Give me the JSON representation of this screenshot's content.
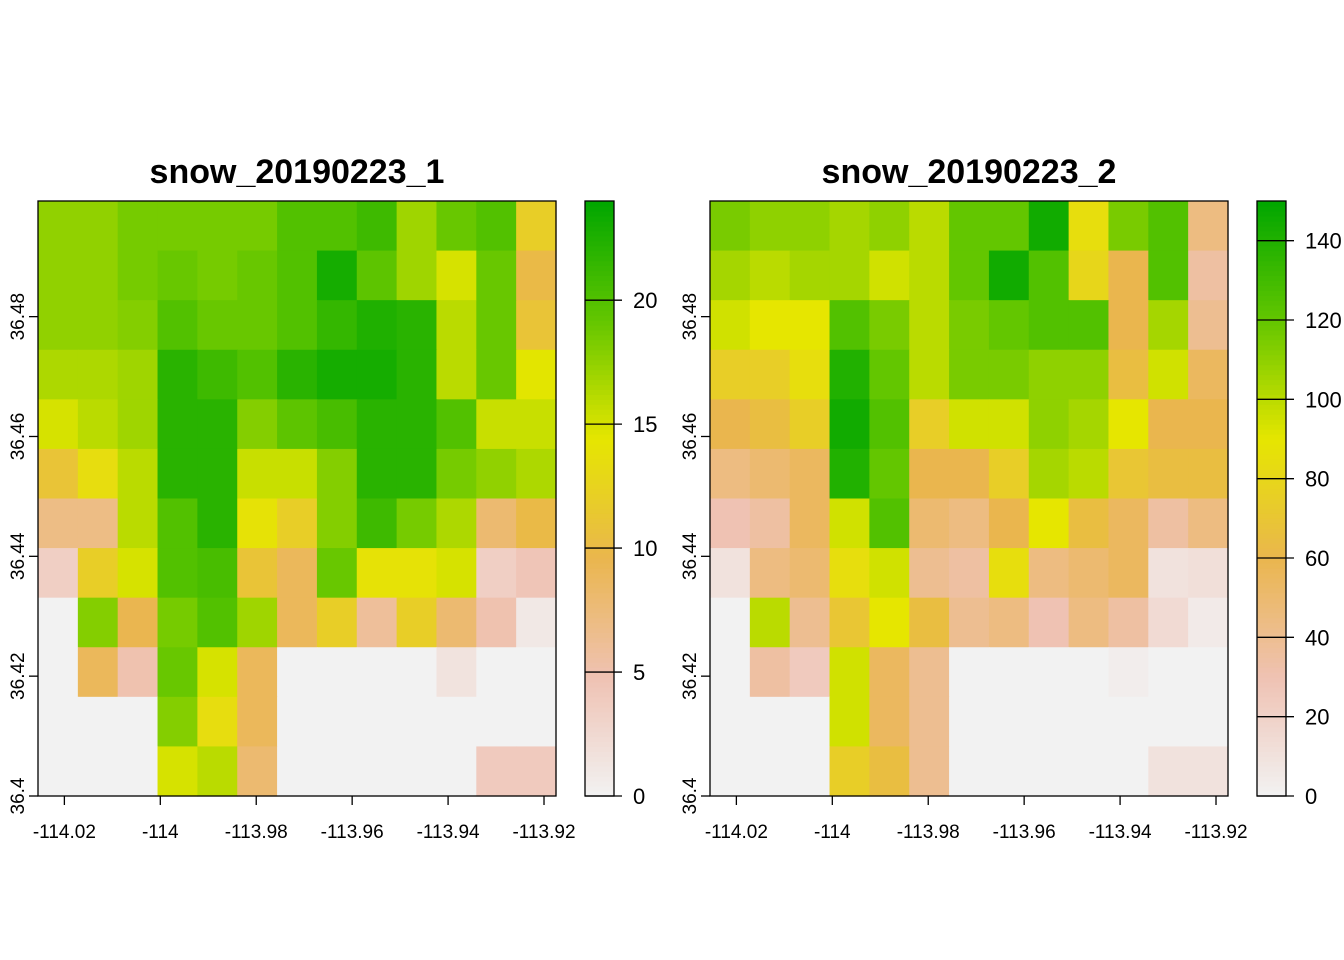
{
  "chart_data": [
    {
      "type": "heatmap",
      "title": "snow_20190223_1",
      "xlabel": "",
      "ylabel": "",
      "xlim": [
        -114.0255,
        -113.9175
      ],
      "ylim": [
        36.4,
        36.4993
      ],
      "x_ticks": [
        -114.02,
        -114,
        -113.98,
        -113.96,
        -113.94,
        -113.92
      ],
      "x_tick_labels": [
        "-114.02",
        "-114",
        "-113.98",
        "-113.96",
        "-113.94",
        "-113.92"
      ],
      "y_ticks": [
        36.4,
        36.42,
        36.44,
        36.46,
        36.48
      ],
      "y_tick_labels": [
        "36.4",
        "36.42",
        "36.44",
        "36.46",
        "36.48"
      ],
      "legend": "right",
      "colorbar": {
        "min": 0,
        "max": 24,
        "ticks": [
          0,
          5,
          10,
          15,
          20
        ],
        "tick_labels": [
          "0",
          "5",
          "10",
          "15",
          "20"
        ]
      },
      "grid": false,
      "rows": 12,
      "cols": 13,
      "values": [
        [
          17.5,
          17.5,
          18.5,
          18.5,
          18.5,
          18.5,
          20,
          20,
          21,
          17,
          19,
          20,
          12
        ],
        [
          17.5,
          17.5,
          18.5,
          19,
          18.5,
          19,
          20,
          23,
          19.5,
          17,
          15,
          19,
          10
        ],
        [
          17.5,
          17.5,
          18,
          20,
          19,
          19,
          20,
          21.5,
          22.5,
          22,
          16,
          19,
          11
        ],
        [
          16.5,
          16.5,
          17,
          22,
          21,
          20,
          22,
          23,
          23,
          22,
          16,
          19,
          14.5
        ],
        [
          15,
          16,
          17,
          22,
          22,
          18,
          19.5,
          20.5,
          22,
          22,
          20,
          15.5,
          15.5
        ],
        [
          11,
          13.5,
          16,
          22,
          22,
          15.5,
          15.5,
          18,
          22,
          22,
          18.5,
          17.5,
          16.5
        ],
        [
          7,
          7,
          16,
          20,
          22,
          14,
          12,
          18,
          21,
          18.5,
          16.5,
          8,
          10
        ],
        [
          3.5,
          12,
          15,
          20,
          20.5,
          11,
          9,
          19,
          14,
          14,
          15,
          3.5,
          4.5
        ],
        [
          0,
          18,
          9.5,
          18.5,
          20,
          17,
          9,
          12,
          6,
          12,
          8,
          5,
          1
        ],
        [
          0,
          9,
          5,
          19,
          15,
          9,
          0,
          0,
          0,
          0,
          1.5,
          0,
          0
        ],
        [
          0,
          0,
          0,
          18,
          13.5,
          9,
          0,
          0,
          0,
          0,
          0,
          0,
          0
        ],
        [
          0,
          0,
          0,
          15,
          16,
          8,
          0,
          0,
          0,
          0,
          0,
          4,
          4
        ]
      ]
    },
    {
      "type": "heatmap",
      "title": "snow_20190223_2",
      "xlabel": "",
      "ylabel": "",
      "xlim": [
        -114.0255,
        -113.9175
      ],
      "ylim": [
        36.4,
        36.4993
      ],
      "x_ticks": [
        -114.02,
        -114,
        -113.98,
        -113.96,
        -113.94,
        -113.92
      ],
      "x_tick_labels": [
        "-114.02",
        "-114",
        "-113.98",
        "-113.96",
        "-113.94",
        "-113.92"
      ],
      "y_ticks": [
        36.4,
        36.42,
        36.44,
        36.46,
        36.48
      ],
      "y_tick_labels": [
        "36.4",
        "36.42",
        "36.44",
        "36.46",
        "36.48"
      ],
      "legend": "right",
      "colorbar": {
        "min": 0,
        "max": 150,
        "ticks": [
          0,
          20,
          40,
          60,
          80,
          100,
          120,
          140
        ],
        "tick_labels": [
          "0",
          "20",
          "40",
          "60",
          "80",
          "100",
          "120",
          "140"
        ]
      },
      "grid": false,
      "rows": 12,
      "cols": 13,
      "values": [
        [
          115,
          110,
          110,
          105,
          110,
          100,
          120,
          120,
          145,
          85,
          115,
          125,
          45
        ],
        [
          105,
          100,
          105,
          105,
          95,
          100,
          120,
          145,
          125,
          80,
          60,
          125,
          35
        ],
        [
          95,
          90,
          90,
          125,
          115,
          100,
          115,
          120,
          125,
          125,
          60,
          105,
          40
        ],
        [
          75,
          75,
          85,
          140,
          120,
          100,
          115,
          115,
          110,
          110,
          65,
          95,
          55
        ],
        [
          60,
          65,
          75,
          145,
          125,
          75,
          95,
          95,
          110,
          105,
          90,
          60,
          60
        ],
        [
          45,
          50,
          55,
          140,
          120,
          60,
          60,
          75,
          105,
          100,
          70,
          65,
          65
        ],
        [
          30,
          35,
          55,
          95,
          125,
          50,
          45,
          60,
          90,
          65,
          55,
          35,
          45
        ],
        [
          10,
          45,
          50,
          85,
          95,
          40,
          35,
          85,
          45,
          50,
          55,
          10,
          12
        ],
        [
          0,
          100,
          40,
          70,
          90,
          65,
          40,
          45,
          30,
          45,
          35,
          15,
          5
        ],
        [
          0,
          35,
          25,
          95,
          55,
          40,
          0,
          0,
          0,
          0,
          3,
          0,
          0
        ],
        [
          0,
          0,
          0,
          95,
          55,
          40,
          0,
          0,
          0,
          0,
          0,
          0,
          0
        ],
        [
          0,
          0,
          0,
          75,
          65,
          40,
          0,
          0,
          0,
          0,
          0,
          10,
          10
        ]
      ]
    }
  ],
  "colors": {
    "palette": [
      "#F2F2F2",
      "#EFC2B3",
      "#EAB64E",
      "#E6E600",
      "#63C600",
      "#00A600"
    ],
    "axis": "#000000",
    "background": "#FFFFFF"
  }
}
